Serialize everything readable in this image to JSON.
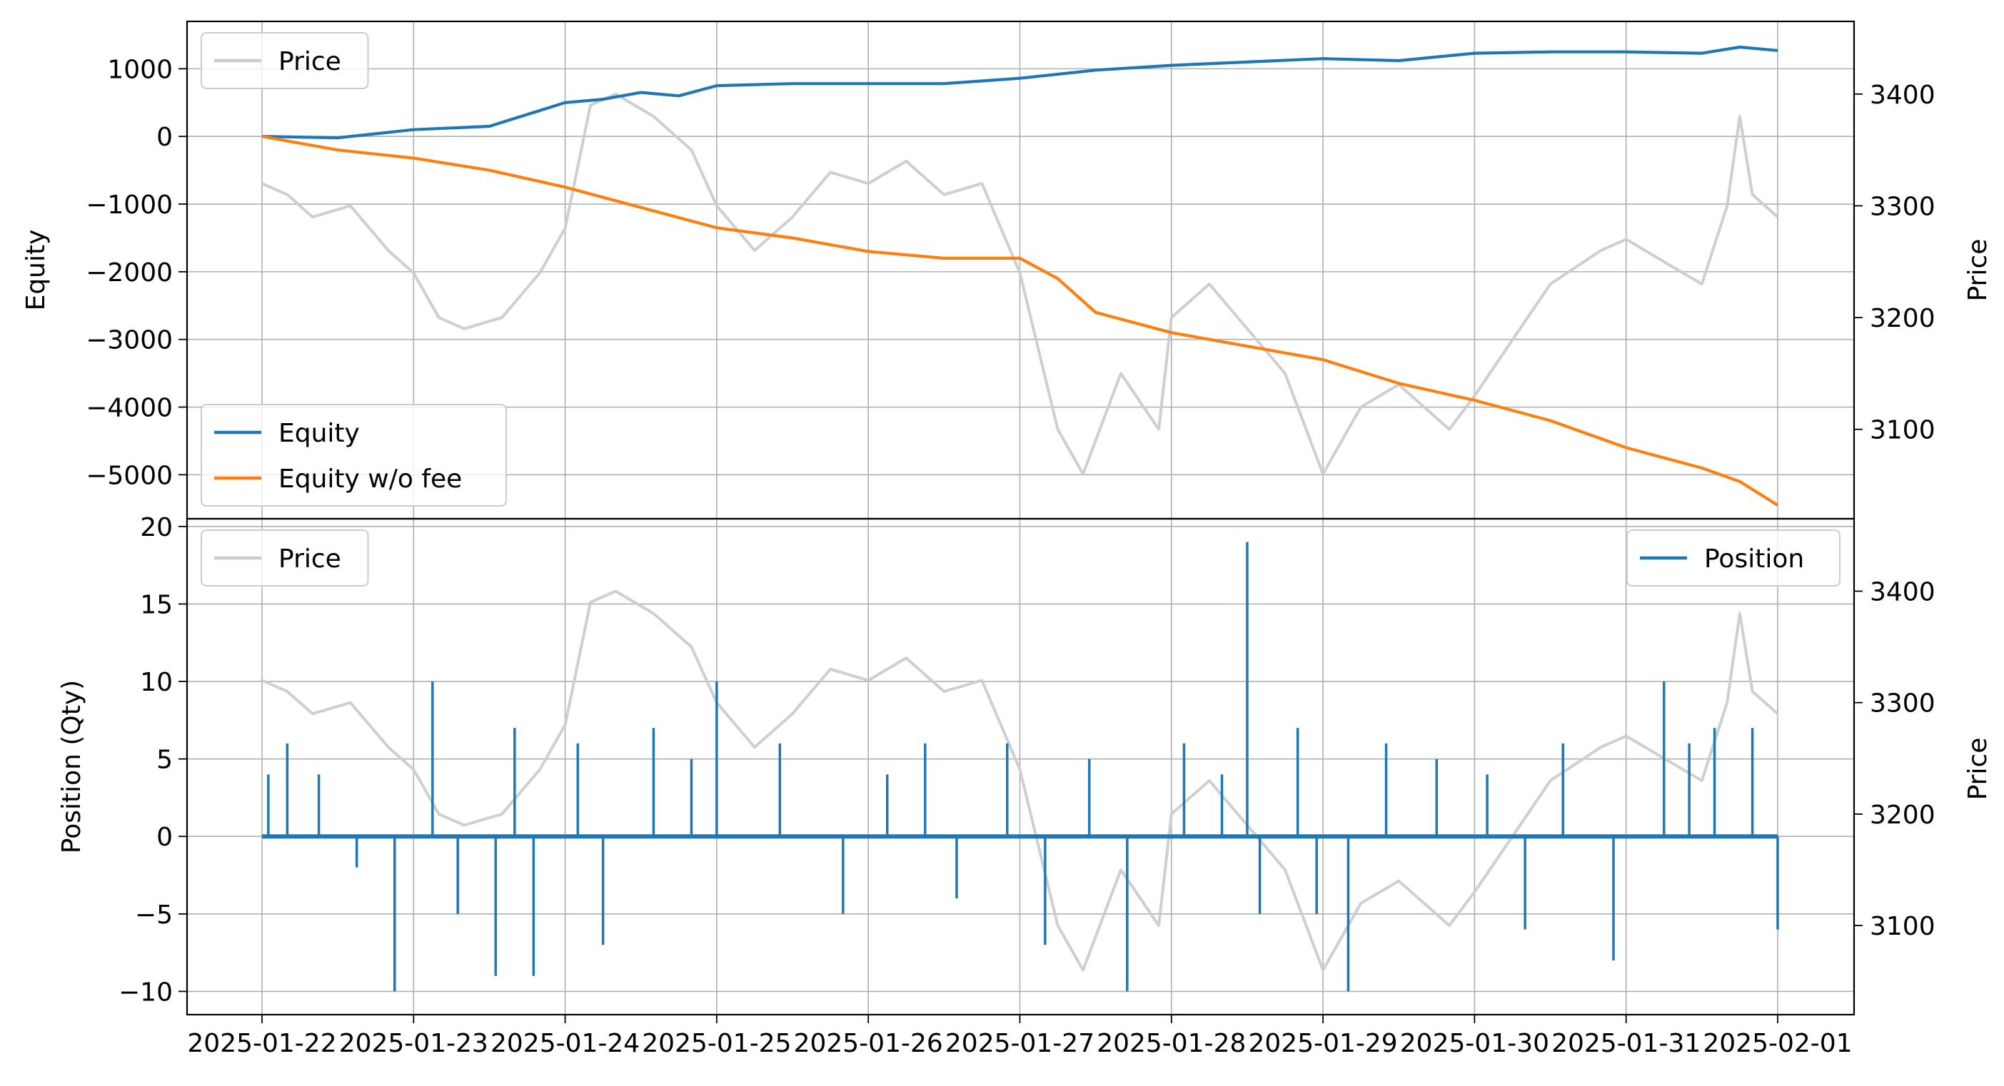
{
  "chart_data": [
    {
      "type": "line",
      "panel": "equity",
      "ylabel": "Equity",
      "ylabel_right": "Price",
      "xlim": [
        "2025-01-22",
        "2025-02-01"
      ],
      "ylim": [
        -5650,
        1700
      ],
      "ylim_right": [
        3020,
        3465
      ],
      "yticks": [
        1000,
        0,
        -1000,
        -2000,
        -3000,
        -4000,
        -5000
      ],
      "yticks_right": [
        3400,
        3300,
        3200,
        3100
      ],
      "grid": true,
      "legend_left": {
        "placement": "lower-left",
        "entries": [
          "Equity",
          "Equity w/o fee"
        ]
      },
      "legend_right": {
        "placement": "upper-left",
        "entries": [
          "Price"
        ]
      },
      "series": [
        {
          "name": "Equity",
          "color": "#1f77b4",
          "axis": "left",
          "x": [
            "2025-01-22",
            "2025-01-22 12:00",
            "2025-01-23",
            "2025-01-23 12:00",
            "2025-01-24",
            "2025-01-24 06:00",
            "2025-01-24 12:00",
            "2025-01-24 18:00",
            "2025-01-25",
            "2025-01-25 12:00",
            "2025-01-26",
            "2025-01-26 12:00",
            "2025-01-27",
            "2025-01-27 12:00",
            "2025-01-28",
            "2025-01-28 12:00",
            "2025-01-29",
            "2025-01-29 12:00",
            "2025-01-30",
            "2025-01-30 12:00",
            "2025-01-31",
            "2025-01-31 12:00",
            "2025-01-31 18:00",
            "2025-02-01"
          ],
          "y": [
            0,
            -20,
            100,
            150,
            500,
            550,
            650,
            600,
            750,
            780,
            780,
            780,
            860,
            980,
            1050,
            1100,
            1150,
            1120,
            1230,
            1250,
            1250,
            1230,
            1320,
            1270
          ]
        },
        {
          "name": "Equity w/o fee",
          "color": "#ff7f0e",
          "axis": "left",
          "x": [
            "2025-01-22",
            "2025-01-22 12:00",
            "2025-01-23",
            "2025-01-23 12:00",
            "2025-01-24",
            "2025-01-24 12:00",
            "2025-01-25",
            "2025-01-25 12:00",
            "2025-01-26",
            "2025-01-26 12:00",
            "2025-01-27",
            "2025-01-27 06:00",
            "2025-01-27 12:00",
            "2025-01-28",
            "2025-01-28 12:00",
            "2025-01-29",
            "2025-01-29 12:00",
            "2025-01-30",
            "2025-01-30 12:00",
            "2025-01-31",
            "2025-01-31 12:00",
            "2025-01-31 18:00",
            "2025-02-01"
          ],
          "y": [
            0,
            -200,
            -320,
            -500,
            -750,
            -1050,
            -1350,
            -1500,
            -1700,
            -1800,
            -1800,
            -2100,
            -2600,
            -2900,
            -3100,
            -3300,
            -3650,
            -3900,
            -4200,
            -4600,
            -4900,
            -5100,
            -5450
          ]
        },
        {
          "name": "Price",
          "color": "#cccccc",
          "axis": "right",
          "x": [
            "2025-01-22",
            "2025-01-22 04:00",
            "2025-01-22 08:00",
            "2025-01-22 14:00",
            "2025-01-22 20:00",
            "2025-01-23",
            "2025-01-23 04:00",
            "2025-01-23 08:00",
            "2025-01-23 14:00",
            "2025-01-23 20:00",
            "2025-01-24",
            "2025-01-24 04:00",
            "2025-01-24 08:00",
            "2025-01-24 14:00",
            "2025-01-24 20:00",
            "2025-01-25",
            "2025-01-25 06:00",
            "2025-01-25 12:00",
            "2025-01-25 18:00",
            "2025-01-26",
            "2025-01-26 06:00",
            "2025-01-26 12:00",
            "2025-01-26 18:00",
            "2025-01-27",
            "2025-01-27 06:00",
            "2025-01-27 10:00",
            "2025-01-27 16:00",
            "2025-01-27 22:00",
            "2025-01-28",
            "2025-01-28 06:00",
            "2025-01-28 12:00",
            "2025-01-28 18:00",
            "2025-01-29",
            "2025-01-29 06:00",
            "2025-01-29 12:00",
            "2025-01-29 20:00",
            "2025-01-30",
            "2025-01-30 06:00",
            "2025-01-30 12:00",
            "2025-01-30 20:00",
            "2025-01-31",
            "2025-01-31 06:00",
            "2025-01-31 12:00",
            "2025-01-31 16:00",
            "2025-01-31 18:00",
            "2025-01-31 20:00",
            "2025-02-01"
          ],
          "y": [
            3320,
            3310,
            3290,
            3300,
            3260,
            3240,
            3200,
            3190,
            3200,
            3240,
            3280,
            3390,
            3400,
            3380,
            3350,
            3300,
            3260,
            3290,
            3330,
            3320,
            3340,
            3310,
            3320,
            3240,
            3100,
            3060,
            3150,
            3100,
            3200,
            3230,
            3190,
            3150,
            3060,
            3120,
            3140,
            3100,
            3130,
            3180,
            3230,
            3260,
            3270,
            3250,
            3230,
            3300,
            3380,
            3310,
            3290
          ]
        }
      ]
    },
    {
      "type": "line",
      "panel": "position",
      "ylabel": "Position (Qty)",
      "ylabel_right": "Price",
      "xlim": [
        "2025-01-22",
        "2025-02-01"
      ],
      "ylim": [
        -11.5,
        20.5
      ],
      "ylim_right": [
        3020,
        3465
      ],
      "yticks": [
        20,
        15,
        10,
        5,
        0,
        -5,
        -10
      ],
      "yticks_right": [
        3400,
        3300,
        3200,
        3100
      ],
      "xticks": [
        "2025-01-22",
        "2025-01-23",
        "2025-01-24",
        "2025-01-25",
        "2025-01-26",
        "2025-01-27",
        "2025-01-28",
        "2025-01-29",
        "2025-01-30",
        "2025-01-31",
        "2025-02-01"
      ],
      "grid": true,
      "legend_left": {
        "placement": "upper-left",
        "entries": [
          "Price"
        ]
      },
      "legend_right": {
        "placement": "upper-right",
        "entries": [
          "Position"
        ]
      },
      "series": [
        {
          "name": "Position",
          "color": "#1f77b4",
          "axis": "left",
          "x": [
            "2025-01-22 01:00",
            "2025-01-22 04:00",
            "2025-01-22 09:00",
            "2025-01-22 15:00",
            "2025-01-22 21:00",
            "2025-01-23 03:00",
            "2025-01-23 07:00",
            "2025-01-23 13:00",
            "2025-01-23 16:00",
            "2025-01-23 19:00",
            "2025-01-24 02:00",
            "2025-01-24 06:00",
            "2025-01-24 14:00",
            "2025-01-24 20:00",
            "2025-01-25",
            "2025-01-25 10:00",
            "2025-01-25 20:00",
            "2025-01-26 03:00",
            "2025-01-26 09:00",
            "2025-01-26 14:00",
            "2025-01-26 22:00",
            "2025-01-27 04:00",
            "2025-01-27 11:00",
            "2025-01-27 17:00",
            "2025-01-28 02:00",
            "2025-01-28 08:00",
            "2025-01-28 12:00",
            "2025-01-28 14:00",
            "2025-01-28 20:00",
            "2025-01-28 23:00",
            "2025-01-29 04:00",
            "2025-01-29 10:00",
            "2025-01-29 18:00",
            "2025-01-30 02:00",
            "2025-01-30 08:00",
            "2025-01-30 14:00",
            "2025-01-30 22:00",
            "2025-01-31 06:00",
            "2025-01-31 10:00",
            "2025-01-31 14:00",
            "2025-01-31 20:00",
            "2025-02-01"
          ],
          "y": [
            4,
            6,
            4,
            -2,
            -10,
            10,
            -5,
            -9,
            7,
            -9,
            6,
            -7,
            7,
            5,
            10,
            6,
            -5,
            4,
            6,
            -4,
            6,
            -7,
            5,
            -10,
            6,
            4,
            19,
            -5,
            7,
            -5,
            -10,
            6,
            5,
            4,
            -6,
            6,
            -8,
            10,
            6,
            7,
            7,
            -6
          ]
        },
        {
          "name": "Price",
          "color": "#cccccc",
          "axis": "right",
          "x": [
            "2025-01-22",
            "2025-01-22 04:00",
            "2025-01-22 08:00",
            "2025-01-22 14:00",
            "2025-01-22 20:00",
            "2025-01-23",
            "2025-01-23 04:00",
            "2025-01-23 08:00",
            "2025-01-23 14:00",
            "2025-01-23 20:00",
            "2025-01-24",
            "2025-01-24 04:00",
            "2025-01-24 08:00",
            "2025-01-24 14:00",
            "2025-01-24 20:00",
            "2025-01-25",
            "2025-01-25 06:00",
            "2025-01-25 12:00",
            "2025-01-25 18:00",
            "2025-01-26",
            "2025-01-26 06:00",
            "2025-01-26 12:00",
            "2025-01-26 18:00",
            "2025-01-27",
            "2025-01-27 06:00",
            "2025-01-27 10:00",
            "2025-01-27 16:00",
            "2025-01-27 22:00",
            "2025-01-28",
            "2025-01-28 06:00",
            "2025-01-28 12:00",
            "2025-01-28 18:00",
            "2025-01-29",
            "2025-01-29 06:00",
            "2025-01-29 12:00",
            "2025-01-29 20:00",
            "2025-01-30",
            "2025-01-30 06:00",
            "2025-01-30 12:00",
            "2025-01-30 20:00",
            "2025-01-31",
            "2025-01-31 06:00",
            "2025-01-31 12:00",
            "2025-01-31 16:00",
            "2025-01-31 18:00",
            "2025-01-31 20:00",
            "2025-02-01"
          ],
          "y": [
            3320,
            3310,
            3290,
            3300,
            3260,
            3240,
            3200,
            3190,
            3200,
            3240,
            3280,
            3390,
            3400,
            3380,
            3350,
            3300,
            3260,
            3290,
            3330,
            3320,
            3340,
            3310,
            3320,
            3240,
            3100,
            3060,
            3150,
            3100,
            3200,
            3230,
            3190,
            3150,
            3060,
            3120,
            3140,
            3100,
            3130,
            3180,
            3230,
            3260,
            3270,
            3250,
            3230,
            3300,
            3380,
            3310,
            3290
          ]
        }
      ]
    }
  ]
}
